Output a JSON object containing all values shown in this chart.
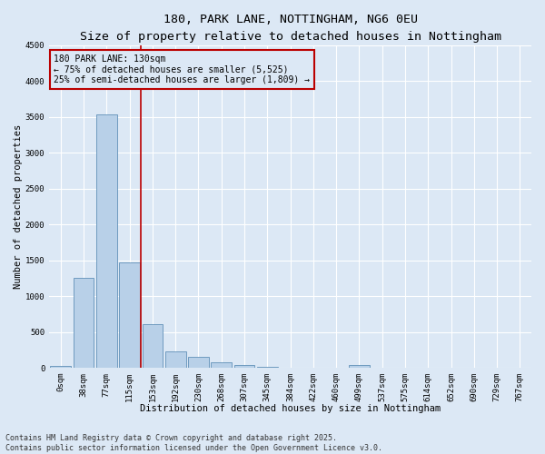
{
  "title_line1": "180, PARK LANE, NOTTINGHAM, NG6 0EU",
  "title_line2": "Size of property relative to detached houses in Nottingham",
  "xlabel": "Distribution of detached houses by size in Nottingham",
  "ylabel": "Number of detached properties",
  "bar_color": "#b8d0e8",
  "bar_edge_color": "#6090b8",
  "background_color": "#dce8f5",
  "grid_color": "#ffffff",
  "vline_color": "#bb0000",
  "vline_x": 3.5,
  "annotation_box_color": "#bb0000",
  "annotation_text": "180 PARK LANE: 130sqm\n← 75% of detached houses are smaller (5,525)\n25% of semi-detached houses are larger (1,809) →",
  "categories": [
    "0sqm",
    "38sqm",
    "77sqm",
    "115sqm",
    "153sqm",
    "192sqm",
    "230sqm",
    "268sqm",
    "307sqm",
    "345sqm",
    "384sqm",
    "422sqm",
    "460sqm",
    "499sqm",
    "537sqm",
    "575sqm",
    "614sqm",
    "652sqm",
    "690sqm",
    "729sqm",
    "767sqm"
  ],
  "values": [
    25,
    1250,
    3530,
    1470,
    615,
    235,
    155,
    75,
    38,
    8,
    0,
    0,
    0,
    35,
    0,
    0,
    0,
    0,
    0,
    0,
    0
  ],
  "ylim": [
    0,
    4500
  ],
  "yticks": [
    0,
    500,
    1000,
    1500,
    2000,
    2500,
    3000,
    3500,
    4000,
    4500
  ],
  "footnote": "Contains HM Land Registry data © Crown copyright and database right 2025.\nContains public sector information licensed under the Open Government Licence v3.0.",
  "title_fontsize": 9.5,
  "subtitle_fontsize": 8.5,
  "axis_label_fontsize": 7.5,
  "tick_fontsize": 6.5,
  "annotation_fontsize": 7,
  "footnote_fontsize": 6
}
